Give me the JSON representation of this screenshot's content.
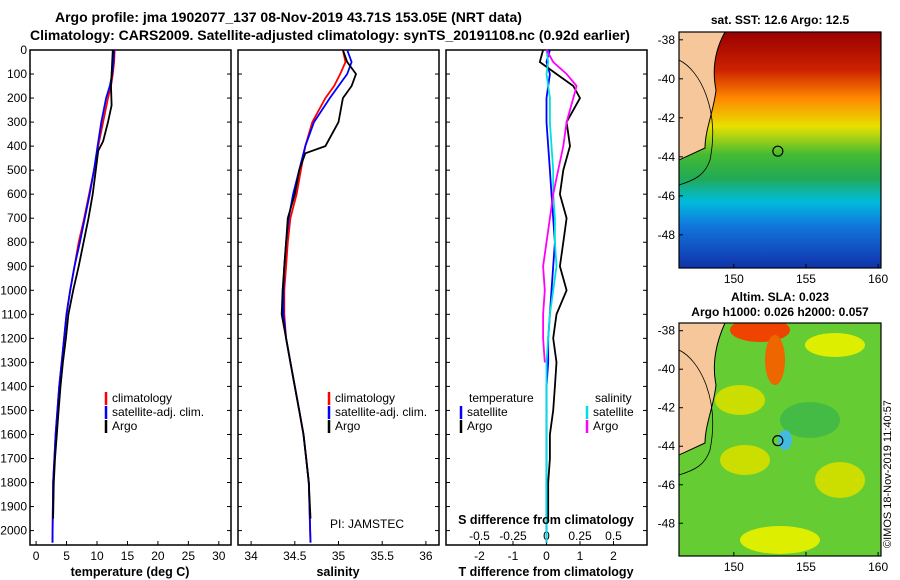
{
  "header": {
    "line1": "Argo profile: jma 1902077_137 08-Nov-2019 43.71S 153.05E (NRT data)",
    "line2": "Climatology: CARS2009. Satellite-adjusted climatology: synTS_20191108.nc (0.92d earlier)"
  },
  "footer_stamp": "©IMOS 18-Nov-2019 11:40:57",
  "pi_label": "PI: JAMSTEC",
  "colors": {
    "climatology": "#ff0000",
    "satellite": "#0000ff",
    "argo": "#000000",
    "sat_t": "#0000ff",
    "sat_s": "#00e0e0",
    "argo_s": "#ff00ff"
  },
  "legends": {
    "profiles": [
      "climatology",
      "satellite-adj. clim.",
      "Argo"
    ],
    "diff_temperature_title": "temperature",
    "diff_salinity_title": "salinity",
    "diff_items": [
      "satellite",
      "Argo"
    ]
  },
  "maps": {
    "sst_title": "sat. SST: 12.6 Argo: 12.5",
    "sla_title1": "Altim. SLA: 0.023",
    "sla_title2": "Argo h1000: 0.026 h2000: 0.057",
    "lon_ticks": [
      "150",
      "155",
      "160"
    ],
    "lat_ticks": [
      "-38",
      "-40",
      "-42",
      "-44",
      "-46",
      "-48"
    ],
    "marker_lat": -43.71,
    "marker_lon": 153.05
  },
  "chart_data": [
    {
      "type": "line",
      "xlabel": "temperature (deg C)",
      "ylabel": "",
      "xlim": [
        -1,
        32
      ],
      "ylim": [
        2060,
        0
      ],
      "xticks": [
        0,
        5,
        10,
        15,
        20,
        25,
        30
      ],
      "yticks": [
        0,
        100,
        200,
        300,
        400,
        500,
        600,
        700,
        800,
        900,
        1000,
        1100,
        1200,
        1300,
        1400,
        1500,
        1600,
        1700,
        1800,
        1900,
        2000
      ],
      "series": [
        {
          "name": "climatology",
          "x": [
            12.9,
            12.8,
            12.6,
            12.3,
            11.8,
            11.0,
            10.2,
            9.5,
            8.7,
            7.9,
            7.0,
            6.3,
            5.6,
            5.0,
            4.6,
            4.2,
            3.8,
            3.5,
            3.2,
            3.0,
            2.8,
            2.7
          ],
          "y": [
            0,
            50,
            100,
            150,
            200,
            300,
            400,
            500,
            600,
            700,
            800,
            900,
            1000,
            1100,
            1200,
            1300,
            1400,
            1500,
            1600,
            1700,
            1800,
            2050
          ]
        },
        {
          "name": "satellite-adj. clim.",
          "x": [
            12.8,
            12.7,
            12.5,
            12.1,
            11.5,
            10.7,
            10.1,
            9.5,
            8.8,
            8.0,
            7.2,
            6.3,
            5.6,
            5.0,
            4.6,
            4.2,
            3.8,
            3.5,
            3.2,
            3.0,
            2.8,
            2.7
          ],
          "y": [
            0,
            50,
            100,
            150,
            200,
            300,
            400,
            500,
            600,
            700,
            800,
            900,
            1000,
            1100,
            1200,
            1300,
            1400,
            1500,
            1600,
            1700,
            1800,
            2050
          ]
        },
        {
          "name": "Argo",
          "x": [
            12.6,
            12.5,
            12.4,
            12.3,
            12.4,
            11.8,
            11.0,
            10.2,
            9.8,
            9.3,
            8.6,
            7.8,
            7.0,
            6.1,
            5.3,
            4.9,
            4.4,
            4.0,
            3.7,
            3.4,
            3.1,
            2.9,
            2.8
          ],
          "y": [
            0,
            50,
            100,
            150,
            230,
            300,
            380,
            420,
            500,
            600,
            700,
            800,
            900,
            1000,
            1100,
            1200,
            1300,
            1400,
            1500,
            1600,
            1700,
            1800,
            1950
          ]
        }
      ]
    },
    {
      "type": "line",
      "xlabel": "salinity",
      "ylabel": "",
      "xlim": [
        33.85,
        36.15
      ],
      "ylim": [
        2060,
        0
      ],
      "xticks": [
        34,
        34.5,
        35,
        35.5,
        36
      ],
      "series": [
        {
          "name": "climatology",
          "x": [
            35.05,
            35.08,
            35.02,
            34.95,
            34.85,
            34.7,
            34.62,
            34.57,
            34.52,
            34.45,
            34.42,
            34.4,
            34.38,
            34.38,
            34.4,
            34.45,
            34.5,
            34.55,
            34.6,
            34.63,
            34.66,
            34.68
          ],
          "y": [
            0,
            50,
            100,
            150,
            200,
            300,
            400,
            500,
            600,
            700,
            800,
            900,
            1000,
            1100,
            1200,
            1300,
            1400,
            1500,
            1600,
            1700,
            1800,
            2050
          ]
        },
        {
          "name": "satellite-adj. clim.",
          "x": [
            35.1,
            35.15,
            35.1,
            35.0,
            34.9,
            34.72,
            34.62,
            34.55,
            34.48,
            34.43,
            34.4,
            34.38,
            34.37,
            34.37,
            34.4,
            34.45,
            34.5,
            34.55,
            34.6,
            34.63,
            34.66,
            34.68
          ],
          "y": [
            0,
            50,
            100,
            150,
            200,
            300,
            400,
            500,
            600,
            700,
            800,
            900,
            1000,
            1100,
            1200,
            1300,
            1400,
            1500,
            1600,
            1700,
            1800,
            2050
          ]
        },
        {
          "name": "Argo",
          "x": [
            35.05,
            35.1,
            35.2,
            35.15,
            35.05,
            35.0,
            34.85,
            34.62,
            34.55,
            34.5,
            34.42,
            34.4,
            34.38,
            34.36,
            34.35,
            34.4,
            34.45,
            34.5,
            34.55,
            34.6,
            34.63,
            34.66,
            34.68
          ],
          "y": [
            0,
            50,
            100,
            150,
            200,
            300,
            400,
            430,
            500,
            600,
            700,
            800,
            900,
            1000,
            1100,
            1200,
            1300,
            1400,
            1500,
            1600,
            1700,
            1800,
            1950
          ]
        }
      ]
    },
    {
      "type": "line",
      "xlabel": "T difference from climatology",
      "xlabel2": "S difference from climatology",
      "ylabel": "",
      "xlim": [
        -3,
        3
      ],
      "ylim": [
        2060,
        0
      ],
      "xticks": [
        -2,
        -1,
        0,
        1,
        2
      ],
      "x2ticks": [
        "-0.5",
        "-0.25",
        "0",
        "0.25",
        "0.5"
      ],
      "series": [
        {
          "name": "temperature satellite",
          "x": [
            0.1,
            0.0,
            0.1,
            0.05,
            0.0,
            0.0,
            0.05,
            0.1,
            0.15,
            0.2,
            0.25,
            0.2,
            0.15,
            0.1,
            0.05,
            0.05,
            0.0,
            0.0,
            0.0,
            0.0,
            0.0
          ],
          "y": [
            0,
            50,
            100,
            150,
            200,
            300,
            400,
            500,
            600,
            700,
            800,
            900,
            1000,
            1100,
            1200,
            1300,
            1400,
            1500,
            1600,
            1700,
            2050
          ]
        },
        {
          "name": "temperature Argo",
          "x": [
            -0.1,
            -0.2,
            0.3,
            0.8,
            1.0,
            0.6,
            0.7,
            0.5,
            0.4,
            0.6,
            0.5,
            0.4,
            0.6,
            0.3,
            0.2,
            0.3,
            0.25,
            0.2,
            0.1,
            0.1,
            0.05,
            0.05
          ],
          "y": [
            0,
            50,
            100,
            150,
            200,
            300,
            400,
            500,
            600,
            700,
            800,
            900,
            1000,
            1100,
            1200,
            1300,
            1400,
            1500,
            1600,
            1700,
            1800,
            1950
          ]
        },
        {
          "name": "salinity satellite",
          "x": [
            0.0,
            0.05,
            0.0,
            0.05,
            0.1,
            0.1,
            0.15,
            0.2,
            0.2,
            0.25,
            0.25,
            0.3,
            0.2,
            0.1,
            0.05,
            0.0,
            0.0,
            0.0,
            0.0,
            0.0,
            0.0
          ],
          "y": [
            0,
            50,
            100,
            150,
            200,
            300,
            400,
            500,
            600,
            700,
            800,
            900,
            1000,
            1100,
            1200,
            1300,
            1400,
            1500,
            1600,
            1700,
            2050
          ]
        },
        {
          "name": "salinity Argo",
          "x": [
            0.0,
            0.2,
            0.6,
            0.9,
            0.8,
            0.6,
            0.5,
            0.35,
            0.2,
            0.1,
            0.0,
            -0.1,
            -0.05,
            -0.1,
            -0.1,
            -0.05
          ],
          "y": [
            0,
            50,
            100,
            150,
            200,
            300,
            400,
            500,
            600,
            700,
            800,
            900,
            1000,
            1100,
            1200,
            1300
          ]
        }
      ]
    }
  ]
}
